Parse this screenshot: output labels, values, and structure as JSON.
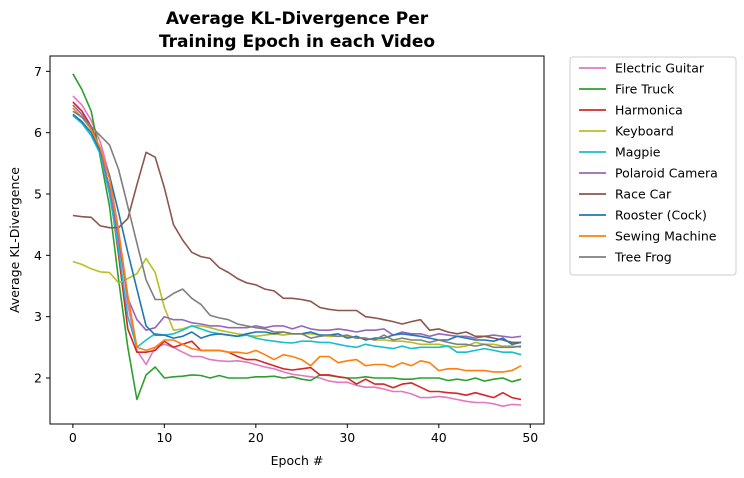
{
  "chart_data": {
    "type": "line",
    "title_lines": [
      "Average KL-Divergence Per",
      "Training Epoch in each Video"
    ],
    "xlabel": "Epoch #",
    "ylabel": "Average KL-Divergence",
    "xlim": [
      -2.5,
      51.5
    ],
    "ylim": [
      1.25,
      7.25
    ],
    "xticks": [
      0,
      10,
      20,
      30,
      40,
      50
    ],
    "yticks": [
      2,
      3,
      4,
      5,
      6,
      7
    ],
    "grid": false,
    "legend_position": "outside-right",
    "x": [
      0,
      1,
      2,
      3,
      4,
      5,
      6,
      7,
      8,
      9,
      10,
      11,
      12,
      13,
      14,
      15,
      16,
      17,
      18,
      19,
      20,
      21,
      22,
      23,
      24,
      25,
      26,
      27,
      28,
      29,
      30,
      31,
      32,
      33,
      34,
      35,
      36,
      37,
      38,
      39,
      40,
      41,
      42,
      43,
      44,
      45,
      46,
      47,
      48,
      49
    ],
    "series": [
      {
        "name": "Electric Guitar",
        "color": "#e377c2",
        "values": [
          6.6,
          6.45,
          6.2,
          5.85,
          5.3,
          4.4,
          3.2,
          2.45,
          2.22,
          2.5,
          2.55,
          2.5,
          2.42,
          2.35,
          2.35,
          2.3,
          2.28,
          2.27,
          2.28,
          2.26,
          2.22,
          2.18,
          2.15,
          2.1,
          2.06,
          2.04,
          2.02,
          2.0,
          1.95,
          1.93,
          1.93,
          1.88,
          1.85,
          1.85,
          1.82,
          1.78,
          1.78,
          1.74,
          1.68,
          1.68,
          1.7,
          1.68,
          1.65,
          1.62,
          1.6,
          1.6,
          1.58,
          1.54,
          1.57,
          1.56
        ]
      },
      {
        "name": "Fire Truck",
        "color": "#2ca02c",
        "values": [
          6.96,
          6.7,
          6.35,
          5.6,
          4.8,
          3.6,
          2.5,
          1.65,
          2.05,
          2.18,
          2.0,
          2.02,
          2.03,
          2.05,
          2.04,
          2.0,
          2.04,
          2.0,
          2.0,
          2.0,
          2.02,
          2.02,
          2.03,
          2.0,
          2.02,
          1.98,
          1.96,
          2.05,
          2.04,
          2.02,
          2.0,
          2.0,
          2.02,
          2.0,
          2.0,
          2.0,
          1.98,
          1.98,
          2.0,
          2.0,
          2.0,
          1.96,
          1.98,
          1.96,
          2.0,
          1.95,
          1.98,
          2.0,
          1.94,
          1.98
        ]
      },
      {
        "name": "Harmonica",
        "color": "#d62728",
        "values": [
          6.5,
          6.35,
          6.1,
          5.7,
          5.1,
          4.0,
          2.8,
          2.42,
          2.42,
          2.45,
          2.6,
          2.5,
          2.55,
          2.6,
          2.45,
          2.45,
          2.45,
          2.42,
          2.35,
          2.3,
          2.3,
          2.25,
          2.2,
          2.15,
          2.13,
          2.15,
          2.17,
          2.05,
          2.05,
          2.02,
          2.0,
          1.9,
          1.98,
          1.9,
          1.9,
          1.84,
          1.9,
          1.92,
          1.85,
          1.78,
          1.78,
          1.76,
          1.75,
          1.72,
          1.76,
          1.72,
          1.68,
          1.76,
          1.68,
          1.65
        ]
      },
      {
        "name": "Keyboard",
        "color": "#bcbd22",
        "values": [
          3.9,
          3.85,
          3.78,
          3.73,
          3.72,
          3.55,
          3.62,
          3.7,
          3.95,
          3.72,
          3.15,
          2.78,
          2.8,
          2.85,
          2.85,
          2.82,
          2.78,
          2.75,
          2.72,
          2.7,
          2.68,
          2.7,
          2.72,
          2.7,
          2.72,
          2.72,
          2.72,
          2.7,
          2.68,
          2.68,
          2.68,
          2.65,
          2.65,
          2.62,
          2.62,
          2.6,
          2.6,
          2.58,
          2.55,
          2.55,
          2.55,
          2.52,
          2.5,
          2.52,
          2.58,
          2.55,
          2.55,
          2.52,
          2.52,
          2.5
        ]
      },
      {
        "name": "Magpie",
        "color": "#17becf",
        "values": [
          6.28,
          6.15,
          5.95,
          5.65,
          5.0,
          4.1,
          3.0,
          2.5,
          2.62,
          2.72,
          2.7,
          2.72,
          2.78,
          2.85,
          2.8,
          2.75,
          2.72,
          2.7,
          2.68,
          2.7,
          2.65,
          2.62,
          2.6,
          2.58,
          2.57,
          2.6,
          2.6,
          2.58,
          2.58,
          2.55,
          2.52,
          2.5,
          2.55,
          2.52,
          2.5,
          2.48,
          2.52,
          2.48,
          2.5,
          2.5,
          2.5,
          2.52,
          2.42,
          2.42,
          2.45,
          2.48,
          2.45,
          2.42,
          2.42,
          2.38
        ]
      },
      {
        "name": "Polaroid Camera",
        "color": "#9467bd",
        "values": [
          6.45,
          6.3,
          6.05,
          5.7,
          5.1,
          4.25,
          3.3,
          2.95,
          2.78,
          2.82,
          3.0,
          2.95,
          2.95,
          2.9,
          2.88,
          2.85,
          2.85,
          2.82,
          2.82,
          2.82,
          2.85,
          2.82,
          2.85,
          2.85,
          2.8,
          2.85,
          2.8,
          2.78,
          2.78,
          2.8,
          2.78,
          2.75,
          2.78,
          2.78,
          2.8,
          2.7,
          2.75,
          2.72,
          2.72,
          2.68,
          2.72,
          2.7,
          2.68,
          2.68,
          2.65,
          2.68,
          2.7,
          2.68,
          2.66,
          2.68
        ]
      },
      {
        "name": "Race Car",
        "color": "#8c564b",
        "values": [
          4.65,
          4.63,
          4.62,
          4.48,
          4.45,
          4.45,
          4.6,
          5.15,
          5.68,
          5.6,
          5.1,
          4.5,
          4.25,
          4.05,
          3.98,
          3.95,
          3.8,
          3.72,
          3.62,
          3.55,
          3.52,
          3.45,
          3.42,
          3.3,
          3.3,
          3.28,
          3.25,
          3.15,
          3.12,
          3.1,
          3.1,
          3.1,
          3.0,
          2.98,
          2.95,
          2.92,
          2.88,
          2.92,
          2.95,
          2.78,
          2.8,
          2.75,
          2.72,
          2.75,
          2.68,
          2.68,
          2.65,
          2.62,
          2.58,
          2.58
        ]
      },
      {
        "name": "Rooster (Cock)",
        "color": "#1f77b4",
        "values": [
          6.3,
          6.18,
          6.0,
          5.7,
          5.3,
          4.7,
          4.05,
          3.45,
          2.85,
          2.7,
          2.7,
          2.65,
          2.68,
          2.75,
          2.65,
          2.7,
          2.72,
          2.7,
          2.68,
          2.72,
          2.75,
          2.75,
          2.72,
          2.75,
          2.72,
          2.72,
          2.75,
          2.7,
          2.7,
          2.72,
          2.65,
          2.68,
          2.62,
          2.65,
          2.65,
          2.7,
          2.72,
          2.7,
          2.68,
          2.65,
          2.62,
          2.62,
          2.68,
          2.65,
          2.62,
          2.62,
          2.6,
          2.65,
          2.55,
          2.58
        ]
      },
      {
        "name": "Sewing Machine",
        "color": "#ff7f0e",
        "values": [
          6.4,
          6.25,
          6.05,
          5.75,
          5.25,
          4.4,
          3.35,
          2.5,
          2.45,
          2.5,
          2.62,
          2.62,
          2.55,
          2.48,
          2.45,
          2.45,
          2.45,
          2.42,
          2.42,
          2.4,
          2.45,
          2.38,
          2.3,
          2.38,
          2.35,
          2.3,
          2.2,
          2.35,
          2.35,
          2.25,
          2.28,
          2.3,
          2.2,
          2.22,
          2.22,
          2.18,
          2.25,
          2.2,
          2.28,
          2.25,
          2.12,
          2.15,
          2.15,
          2.12,
          2.12,
          2.12,
          2.1,
          2.1,
          2.12,
          2.2
        ]
      },
      {
        "name": "Tree Frog",
        "color": "#7f7f7f",
        "values": [
          6.35,
          6.25,
          6.1,
          5.95,
          5.8,
          5.4,
          4.8,
          4.2,
          3.6,
          3.28,
          3.28,
          3.38,
          3.45,
          3.3,
          3.2,
          3.02,
          2.98,
          2.95,
          2.88,
          2.85,
          2.82,
          2.8,
          2.75,
          2.75,
          2.72,
          2.72,
          2.65,
          2.68,
          2.7,
          2.68,
          2.7,
          2.65,
          2.65,
          2.62,
          2.7,
          2.62,
          2.65,
          2.62,
          2.62,
          2.58,
          2.62,
          2.58,
          2.55,
          2.55,
          2.52,
          2.55,
          2.5,
          2.5,
          2.5,
          2.52
        ]
      }
    ]
  }
}
